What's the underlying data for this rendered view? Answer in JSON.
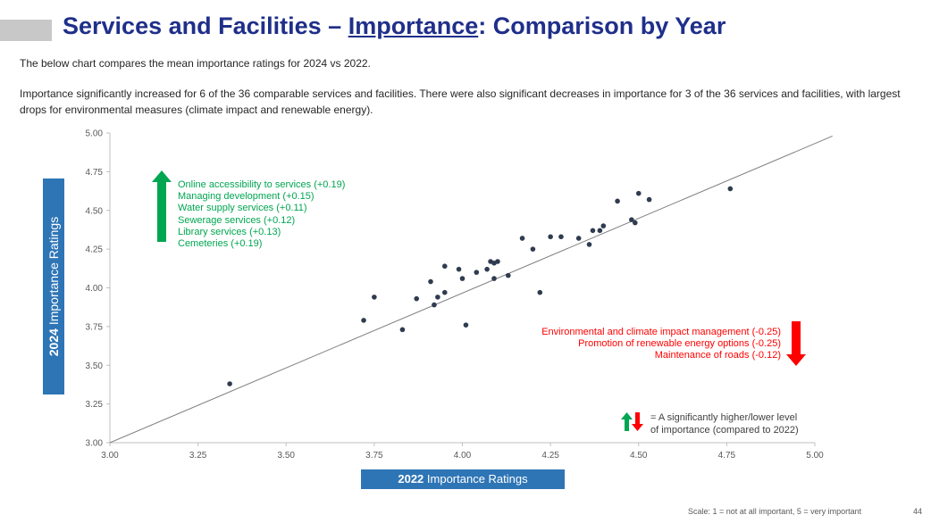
{
  "header": {
    "title_part1": "Services and Facilities – ",
    "title_underlined": "Importance",
    "title_part2": ": Comparison by Year"
  },
  "intro_text": "The below chart compares the mean importance ratings for 2024 vs 2022.",
  "paragraph_text": "Importance significantly increased for 6 of the 36 comparable services and facilities. There were also significant decreases in importance for 3 of the 36 services and facilities, with largest drops for environmental measures (climate impact and renewable energy).",
  "axis_labels": {
    "y_year": "2024",
    "y_text": " Importance Ratings",
    "x_year": "2022",
    "x_text": " Importance Ratings"
  },
  "increases": [
    "Online accessibility to services (+0.19)",
    "Managing development (+0.15)",
    "Water supply services (+0.11)",
    "Sewerage services (+0.12)",
    "Library services (+0.13)",
    "Cemeteries (+0.19)"
  ],
  "decreases": [
    "Environmental and climate impact management (-0.25)",
    "Promotion of renewable energy options (-0.25)",
    "Maintenance of roads (-0.12)"
  ],
  "legend": {
    "line1": "= A significantly higher/lower level",
    "line2": "of importance (compared to 2022)"
  },
  "footnote": "Scale: 1 = not at all important, 5 = very important",
  "page_number": "44",
  "colors": {
    "points": "#2f3b4f",
    "increase": "#00a651",
    "decrease": "#ff0000",
    "label_box": "#2e75b6",
    "title": "#1f2f8a"
  },
  "chart_data": {
    "type": "scatter",
    "xlim": [
      3.0,
      5.0
    ],
    "ylim": [
      3.0,
      5.0
    ],
    "x_ticks": [
      "3.00",
      "3.25",
      "3.50",
      "3.75",
      "4.00",
      "4.25",
      "4.50",
      "4.75",
      "5.00"
    ],
    "y_ticks": [
      "3.00",
      "3.25",
      "3.50",
      "3.75",
      "4.00",
      "4.25",
      "4.50",
      "4.75",
      "5.00"
    ],
    "reference_line": "y = x",
    "grid": false,
    "points": [
      {
        "x": 3.34,
        "y": 3.38
      },
      {
        "x": 3.72,
        "y": 3.79
      },
      {
        "x": 3.75,
        "y": 3.94
      },
      {
        "x": 3.83,
        "y": 3.73
      },
      {
        "x": 3.87,
        "y": 3.93
      },
      {
        "x": 3.91,
        "y": 4.04
      },
      {
        "x": 3.92,
        "y": 3.89
      },
      {
        "x": 3.93,
        "y": 3.94
      },
      {
        "x": 3.95,
        "y": 3.97
      },
      {
        "x": 3.95,
        "y": 4.14
      },
      {
        "x": 3.99,
        "y": 4.12
      },
      {
        "x": 4.0,
        "y": 4.06
      },
      {
        "x": 4.01,
        "y": 3.76
      },
      {
        "x": 4.04,
        "y": 4.1
      },
      {
        "x": 4.07,
        "y": 4.12
      },
      {
        "x": 4.08,
        "y": 4.17
      },
      {
        "x": 4.09,
        "y": 4.06
      },
      {
        "x": 4.09,
        "y": 4.16
      },
      {
        "x": 4.1,
        "y": 4.17
      },
      {
        "x": 4.13,
        "y": 4.08
      },
      {
        "x": 4.17,
        "y": 4.32
      },
      {
        "x": 4.2,
        "y": 4.25
      },
      {
        "x": 4.22,
        "y": 3.97
      },
      {
        "x": 4.25,
        "y": 4.33
      },
      {
        "x": 4.28,
        "y": 4.33
      },
      {
        "x": 4.33,
        "y": 4.32
      },
      {
        "x": 4.36,
        "y": 4.28
      },
      {
        "x": 4.37,
        "y": 4.37
      },
      {
        "x": 4.39,
        "y": 4.37
      },
      {
        "x": 4.4,
        "y": 4.4
      },
      {
        "x": 4.44,
        "y": 4.56
      },
      {
        "x": 4.48,
        "y": 4.44
      },
      {
        "x": 4.49,
        "y": 4.42
      },
      {
        "x": 4.5,
        "y": 4.61
      },
      {
        "x": 4.53,
        "y": 4.57
      },
      {
        "x": 4.76,
        "y": 4.64
      }
    ]
  }
}
